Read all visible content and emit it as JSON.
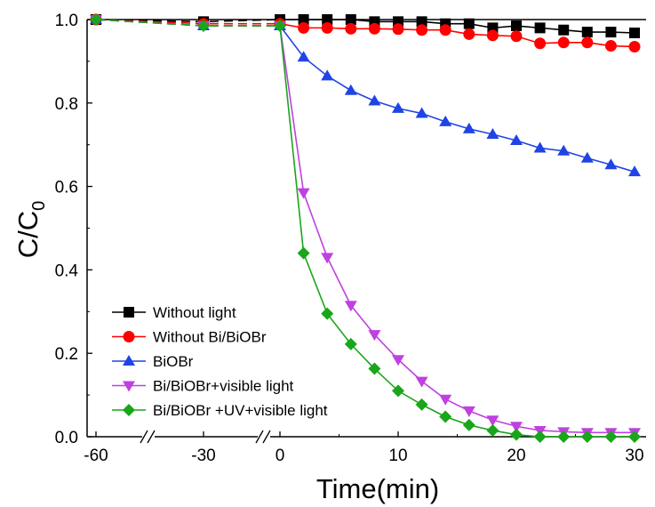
{
  "chart_data": {
    "type": "line",
    "xlabel": "Time(min)",
    "ylabel": {
      "main": "C/C",
      "sub": "0"
    },
    "ylim": [
      0.0,
      1.0
    ],
    "y_ticks": [
      "0.0",
      "0.2",
      "0.4",
      "0.6",
      "0.8",
      "1.0"
    ],
    "x_ticks": [
      "-60",
      "-30",
      "0",
      "10",
      "20",
      "30"
    ],
    "x_axis_breaks": [
      "between -60 and -30",
      "between -30 and 0"
    ],
    "legend_position": "bottom-left",
    "series": [
      {
        "name": "Without light",
        "color": "#000000",
        "marker": "square",
        "x": [
          -60,
          -30,
          0,
          2,
          4,
          6,
          8,
          10,
          12,
          14,
          16,
          18,
          20,
          22,
          24,
          26,
          28,
          30
        ],
        "y": [
          1.0,
          0.995,
          1.0,
          1.0,
          1.0,
          1.0,
          0.995,
          0.995,
          0.995,
          0.99,
          0.99,
          0.98,
          0.985,
          0.98,
          0.975,
          0.97,
          0.97,
          0.968
        ]
      },
      {
        "name": "Without Bi/BiOBr",
        "color": "#ff0000",
        "marker": "circle",
        "x": [
          -60,
          -30,
          0,
          2,
          4,
          6,
          8,
          10,
          12,
          14,
          16,
          18,
          20,
          22,
          24,
          26,
          28,
          30
        ],
        "y": [
          1.0,
          0.99,
          0.99,
          0.98,
          0.98,
          0.978,
          0.978,
          0.977,
          0.975,
          0.975,
          0.965,
          0.962,
          0.96,
          0.943,
          0.945,
          0.945,
          0.937,
          0.935
        ]
      },
      {
        "name": "BiOBr",
        "color": "#1f44e6",
        "marker": "triangle-up",
        "x": [
          -60,
          -30,
          0,
          2,
          4,
          6,
          8,
          10,
          12,
          14,
          16,
          18,
          20,
          22,
          24,
          26,
          28,
          30
        ],
        "y": [
          1.0,
          0.985,
          0.985,
          0.91,
          0.865,
          0.83,
          0.805,
          0.787,
          0.775,
          0.755,
          0.738,
          0.725,
          0.71,
          0.692,
          0.685,
          0.668,
          0.652,
          0.635
        ]
      },
      {
        "name": "Bi/BiOBr+visible light",
        "color": "#c040e0",
        "marker": "triangle-down",
        "x": [
          -60,
          -30,
          0,
          2,
          4,
          6,
          8,
          10,
          12,
          14,
          16,
          18,
          20,
          22,
          24,
          26,
          28,
          30
        ],
        "y": [
          1.0,
          0.985,
          0.985,
          0.585,
          0.43,
          0.315,
          0.245,
          0.185,
          0.133,
          0.09,
          0.062,
          0.04,
          0.025,
          0.015,
          0.012,
          0.01,
          0.01,
          0.01
        ]
      },
      {
        "name": "Bi/BiOBr +UV+visible light",
        "color": "#1aa61a",
        "marker": "diamond",
        "x": [
          -60,
          -30,
          0,
          2,
          4,
          6,
          8,
          10,
          12,
          14,
          16,
          18,
          20,
          22,
          24,
          26,
          28,
          30
        ],
        "y": [
          1.0,
          0.985,
          0.985,
          0.44,
          0.295,
          0.222,
          0.163,
          0.11,
          0.077,
          0.048,
          0.028,
          0.015,
          0.005,
          0.0,
          0.0,
          0.0,
          0.0,
          0.0
        ]
      }
    ]
  }
}
